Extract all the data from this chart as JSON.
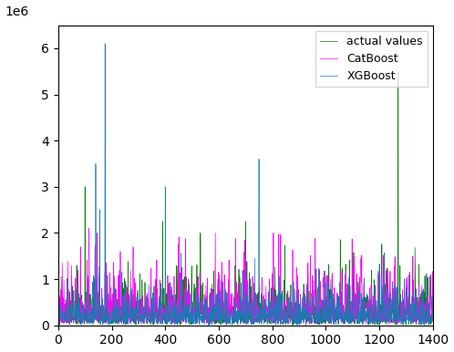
{
  "title": "",
  "xlabel": "",
  "ylabel": "",
  "xlim": [
    0,
    1400
  ],
  "ylim_max": 6500000,
  "legend": [
    "actual values",
    "CatBoost",
    "XGBoost"
  ],
  "colors": {
    "actual": "#008000",
    "catboost": "#ff00ff",
    "xgboost": "#1f77b4"
  },
  "seed": 42,
  "n_points": 1400
}
